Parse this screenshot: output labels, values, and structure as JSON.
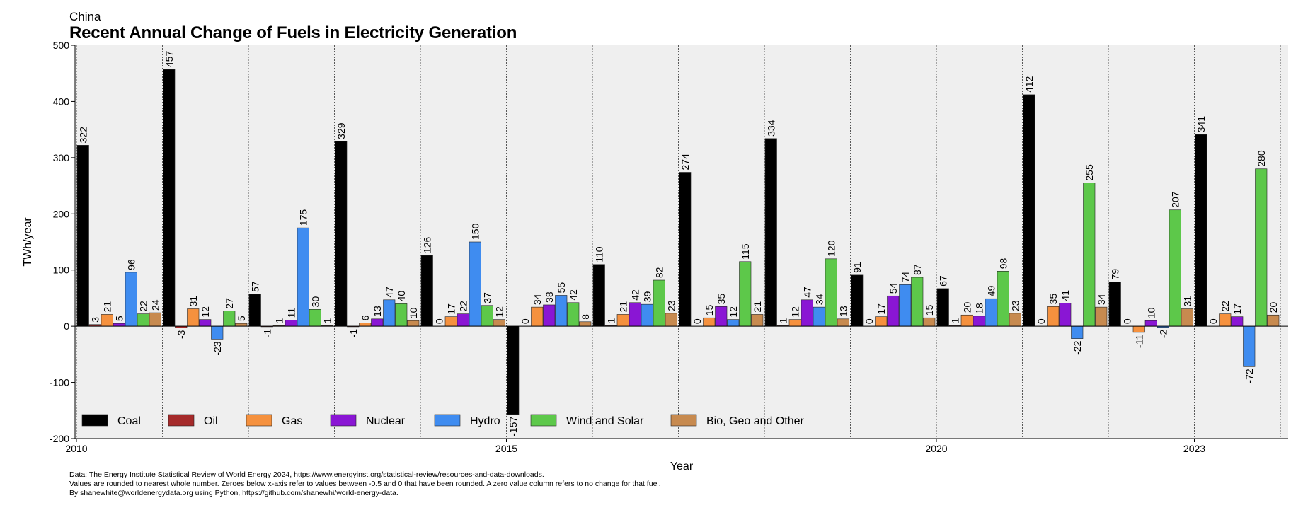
{
  "supertitle": "China",
  "title": "Recent Annual Change of Fuels in Electricity Generation",
  "footnotes": [
    "Data: The Energy Institute Statistical Review of World Energy 2024, https://www.energyinst.org/statistical-review/resources-and-data-downloads.",
    "Values are rounded to nearest whole number. Zeroes below x-axis refer to  values between -0.5 and 0 that have been rounded. A zero value column refers to no change for that fuel.",
    "By shanewhite@worldenergydata.org using Python, https://github.com/shanewhi/world-energy-data."
  ],
  "chart_data": {
    "type": "bar",
    "xlabel": "Year",
    "ylabel": "TWh/year",
    "ylim": [
      -200,
      500
    ],
    "yticks": [
      -200,
      -100,
      0,
      100,
      200,
      300,
      400,
      500
    ],
    "xtick_labels": [
      "2010",
      "2015",
      "2020",
      "2023"
    ],
    "categories": [
      "2010",
      "2011",
      "2012",
      "2013",
      "2014",
      "2015",
      "2016",
      "2017",
      "2018",
      "2019",
      "2020",
      "2021",
      "2022",
      "2023"
    ],
    "grid": "vertical dashed lines between years",
    "legend_position": "bottom-left",
    "series": [
      {
        "name": "Coal",
        "color": "#000000",
        "values": [
          322,
          457,
          57,
          329,
          126,
          -157,
          110,
          274,
          334,
          91,
          67,
          412,
          79,
          341
        ],
        "labels": [
          "322",
          "457",
          "57",
          "329",
          "126",
          "-157",
          "110",
          "274",
          "334",
          "91",
          "67",
          "412",
          "79",
          "341"
        ]
      },
      {
        "name": "Oil",
        "color": "#a52a2a",
        "values": [
          3,
          -3,
          -1,
          -1,
          0,
          0,
          1,
          0,
          1,
          0,
          1,
          0,
          0,
          0
        ],
        "labels": [
          "3",
          "-3",
          "-1",
          "-1",
          "0",
          "0",
          "1",
          "0",
          "1",
          "0",
          "1",
          "0",
          "0",
          "0"
        ]
      },
      {
        "name": "Gas",
        "color": "#f5913e",
        "values": [
          21,
          31,
          1,
          6,
          17,
          34,
          21,
          15,
          12,
          17,
          20,
          35,
          -11,
          22
        ],
        "labels": [
          "21",
          "31",
          "1",
          "6",
          "17",
          "34",
          "21",
          "15",
          "12",
          "17",
          "20",
          "35",
          "-11",
          "22"
        ]
      },
      {
        "name": "Nuclear",
        "color": "#8a16d4",
        "values": [
          5,
          12,
          11,
          13,
          22,
          38,
          42,
          35,
          47,
          54,
          18,
          41,
          10,
          17
        ],
        "labels": [
          "5",
          "12",
          "11",
          "13",
          "22",
          "38",
          "42",
          "35",
          "47",
          "54",
          "18",
          "41",
          "10",
          "17"
        ]
      },
      {
        "name": "Hydro",
        "color": "#3f8cf0",
        "values": [
          96,
          -23,
          175,
          47,
          150,
          55,
          39,
          12,
          34,
          74,
          49,
          -22,
          -2,
          -72
        ],
        "labels": [
          "96",
          "-23",
          "175",
          "47",
          "150",
          "55",
          "39",
          "12",
          "34",
          "74",
          "49",
          "-22",
          "-2",
          "-72"
        ]
      },
      {
        "name": "Wind and Solar",
        "color": "#5dc84a",
        "values": [
          22,
          27,
          30,
          40,
          37,
          42,
          82,
          115,
          120,
          87,
          98,
          255,
          207,
          280
        ],
        "labels": [
          "22",
          "27",
          "30",
          "40",
          "37",
          "42",
          "82",
          "115",
          "120",
          "87",
          "98",
          "255",
          "207",
          "280"
        ]
      },
      {
        "name": "Bio, Geo and Other",
        "color": "#c78a4f",
        "values": [
          24,
          5,
          1,
          10,
          12,
          8,
          23,
          21,
          13,
          15,
          23,
          34,
          31,
          20
        ],
        "labels": [
          "24",
          "5",
          "1",
          "10",
          "12",
          "8",
          "23",
          "21",
          "13",
          "15",
          "23",
          "34",
          "31",
          "20"
        ]
      }
    ]
  }
}
